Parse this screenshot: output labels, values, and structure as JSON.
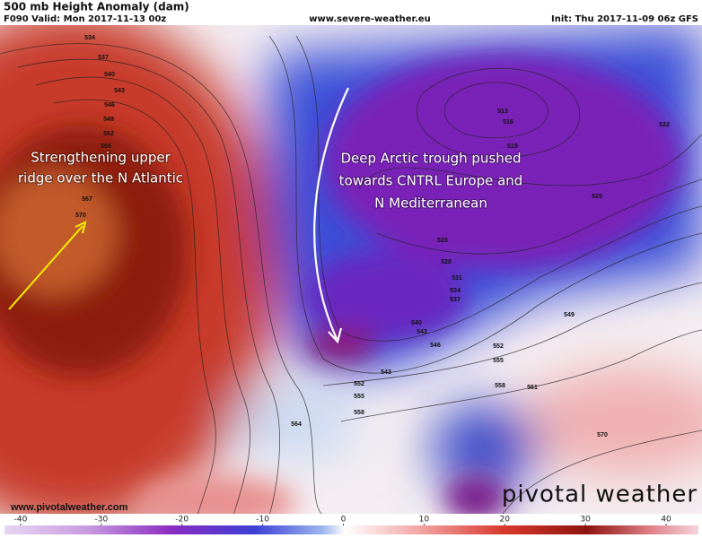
{
  "header": {
    "title": "500 mb Height Anomaly (dam)",
    "valid": "F090 Valid: Mon 2017-11-13 00z",
    "source": "www.severe-weather.eu",
    "init": "Init: Thu 2017-11-09 06z GFS"
  },
  "annotations": {
    "ridge": [
      "Strengthening upper",
      "ridge over the N Atlantic"
    ],
    "trough": [
      "Deep Arctic trough pushed",
      "towards CNTRL Europe and",
      "N Mediterranean"
    ]
  },
  "contour_labels": [
    "534",
    "537",
    "540",
    "543",
    "546",
    "549",
    "552",
    "555",
    "567",
    "570",
    "513",
    "516",
    "519",
    "522",
    "525",
    "525",
    "528",
    "531",
    "534",
    "537",
    "540",
    "543",
    "546",
    "549",
    "552",
    "555",
    "543",
    "552",
    "555",
    "558",
    "558",
    "561",
    "564",
    "570"
  ],
  "footer": {
    "url": "www.pivotalweather.com",
    "logo": "pivotal weather"
  },
  "colorbar": {
    "lim": [
      -42,
      44
    ],
    "ticks": [
      -40,
      -30,
      -20,
      -10,
      0,
      10,
      20,
      30,
      40
    ]
  }
}
